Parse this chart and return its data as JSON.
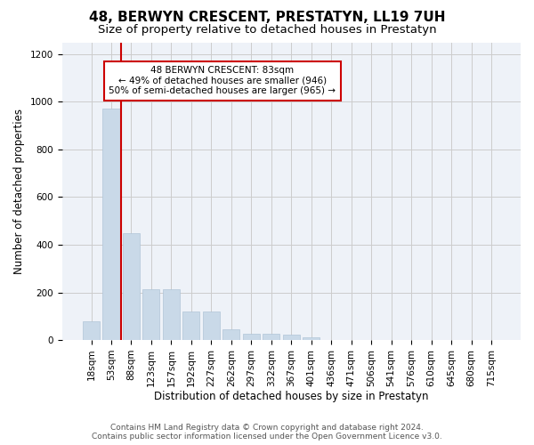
{
  "title": "48, BERWYN CRESCENT, PRESTATYN, LL19 7UH",
  "subtitle": "Size of property relative to detached houses in Prestatyn",
  "xlabel": "Distribution of detached houses by size in Prestatyn",
  "ylabel": "Number of detached properties",
  "bar_labels": [
    "18sqm",
    "53sqm",
    "88sqm",
    "123sqm",
    "157sqm",
    "192sqm",
    "227sqm",
    "262sqm",
    "297sqm",
    "332sqm",
    "367sqm",
    "401sqm",
    "436sqm",
    "471sqm",
    "506sqm",
    "541sqm",
    "576sqm",
    "610sqm",
    "645sqm",
    "680sqm",
    "715sqm"
  ],
  "bar_values": [
    80,
    970,
    450,
    215,
    215,
    120,
    120,
    47,
    28,
    25,
    22,
    12,
    0,
    0,
    0,
    0,
    0,
    0,
    0,
    0,
    0
  ],
  "bar_color": "#c9d9e8",
  "bar_edgecolor": "#b0c4d8",
  "ylim": [
    0,
    1250
  ],
  "yticks": [
    0,
    200,
    400,
    600,
    800,
    1000,
    1200
  ],
  "vline_color": "#cc0000",
  "annotation_text": "48 BERWYN CRESCENT: 83sqm\n← 49% of detached houses are smaller (946)\n50% of semi-detached houses are larger (965) →",
  "footer_line1": "Contains HM Land Registry data © Crown copyright and database right 2024.",
  "footer_line2": "Contains public sector information licensed under the Open Government Licence v3.0.",
  "bg_color": "#ffffff",
  "plot_bg_color": "#eef2f8",
  "title_fontsize": 11,
  "subtitle_fontsize": 9.5,
  "axis_label_fontsize": 8.5,
  "tick_fontsize": 7.5,
  "footer_fontsize": 6.5
}
